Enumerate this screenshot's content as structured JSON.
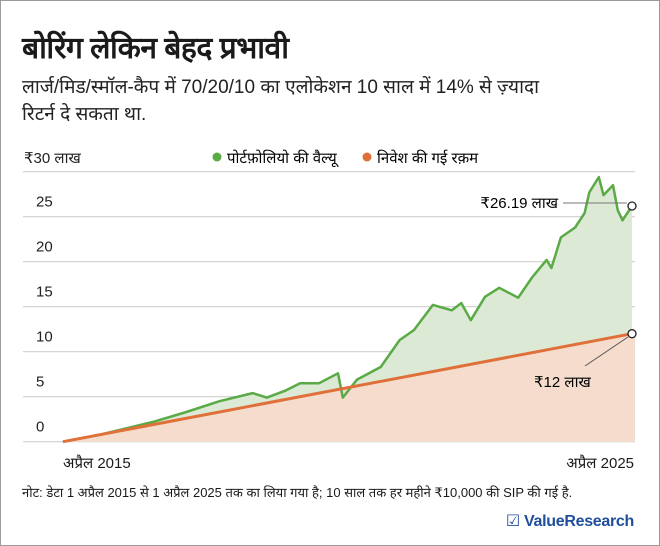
{
  "title": "बोरिंग लेकिन बेहद प्रभावी",
  "subtitle": "लार्ज/मिड/स्मॉल-कैप में 70/20/10 का एलोकेशन 10 साल में 14% से ज़्यादा रिटर्न दे सकता था.",
  "note": "नोट: डेटा 1 अप्रैल 2015 से 1 अप्रैल 2025 तक का लिया गया है; 10 साल तक हर महीने ₹10,000 की SIP की गई है.",
  "logo": "☑ ValueResearch",
  "chart_data": {
    "type": "area",
    "title": "",
    "xlabel": "",
    "ylabel": "",
    "ylim": [
      0,
      30
    ],
    "xlim": [
      "2015-04",
      "2025-04"
    ],
    "grid": true,
    "legend_position": "top",
    "y_ticks": [
      "0",
      "5",
      "10",
      "15",
      "20",
      "25",
      "₹30 लाख"
    ],
    "y_tick_values": [
      0,
      5,
      10,
      15,
      20,
      25,
      30
    ],
    "x_ticks": [
      "अप्रैल 2015",
      "अप्रैल 2025"
    ],
    "colors": {
      "portfolio": "#5aaa46",
      "portfolio_fill": "#dce9d5",
      "invested": "#e0703a",
      "invested_fill": "#f5dccd"
    },
    "series": [
      {
        "name": "पोर्टफ़ोलियो की वैल्यू",
        "x": [
          "2015-04",
          "2015-12",
          "2016-11",
          "2017-06",
          "2018-01",
          "2018-08",
          "2018-11",
          "2019-03",
          "2019-06",
          "2019-10",
          "2020-02",
          "2020-03",
          "2020-06",
          "2020-11",
          "2021-03",
          "2021-06",
          "2021-10",
          "2022-02",
          "2022-04",
          "2022-06",
          "2022-09",
          "2022-12",
          "2023-04",
          "2023-07",
          "2023-10",
          "2023-11",
          "2024-01",
          "2024-04",
          "2024-06",
          "2024-07",
          "2024-09",
          "2024-10",
          "2024-12",
          "2025-01",
          "2025-02",
          "2025-04"
        ],
        "values": [
          0,
          0.8,
          2.2,
          3.3,
          4.5,
          5.4,
          4.9,
          5.7,
          6.5,
          6.5,
          7.6,
          4.9,
          6.9,
          8.3,
          11.3,
          12.4,
          15.2,
          14.6,
          15.4,
          13.5,
          16.1,
          17.1,
          16.0,
          18.3,
          20.2,
          19.3,
          22.7,
          23.8,
          25.4,
          27.7,
          29.4,
          27.4,
          28.5,
          25.7,
          24.6,
          26.19
        ]
      },
      {
        "name": "निवेश की गई रक़म",
        "x": [
          "2015-04",
          "2025-04"
        ],
        "values": [
          0,
          12
        ]
      }
    ],
    "annotations": [
      {
        "text": "₹26.19 लाख",
        "x": "2025-04",
        "y": 26.19
      },
      {
        "text": "₹12 लाख",
        "x": "2025-04",
        "y": 12
      }
    ]
  }
}
